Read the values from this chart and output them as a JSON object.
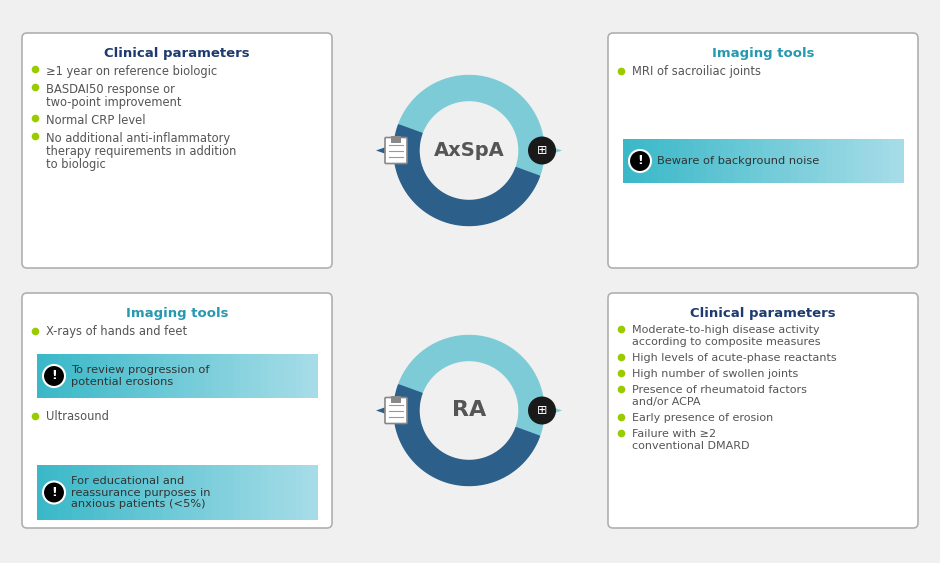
{
  "bg_color": "#f0f0f0",
  "box_fc": "#ffffff",
  "border_color": "#b0b0b0",
  "title_blue": "#1e3a6e",
  "title_teal": "#2698b0",
  "bullet_color": "#99cc00",
  "text_color": "#555555",
  "teal_warn_left": "#3ab8c8",
  "teal_warn_right": "#a8dde8",
  "circle_light": "#7ecbd8",
  "circle_dark": "#2c5f8a",
  "arrow_dark": "#2c5f8a",
  "arrow_light": "#7ecbd8",
  "axspa_label": "AxSpA",
  "ra_label": "RA",
  "label_color": "#555555",
  "top_left_title": "Clinical parameters",
  "top_left_bullets": [
    "≥1 year on reference biologic",
    "BASDAI50 response or\ntwo-point improvement",
    "Normal CRP level",
    "No additional anti-inflammatory\ntherapy requirements in addition\nto biologic"
  ],
  "top_right_title": "Imaging tools",
  "top_right_bullet": "MRI of sacroiliac joints",
  "top_right_warning": "Beware of background noise",
  "bottom_left_title": "Imaging tools",
  "bottom_left_bullet1": "X-rays of hands and feet",
  "bottom_left_warning1": "To review progression of\npotential erosions",
  "bottom_left_bullet2": "Ultrasound",
  "bottom_left_warning2": "For educational and\nreassurance purposes in\nanxious patients (<5%)",
  "bottom_right_title": "Clinical parameters",
  "bottom_right_bullets": [
    "Moderate-to-high disease activity\naccording to composite measures",
    "High levels of acute-phase reactants",
    "High number of swollen joints",
    "Presence of rheumatoid factors\nand/or ACPA",
    "Early presence of erosion",
    "Failure with ≥2\nconventional DMARD"
  ]
}
